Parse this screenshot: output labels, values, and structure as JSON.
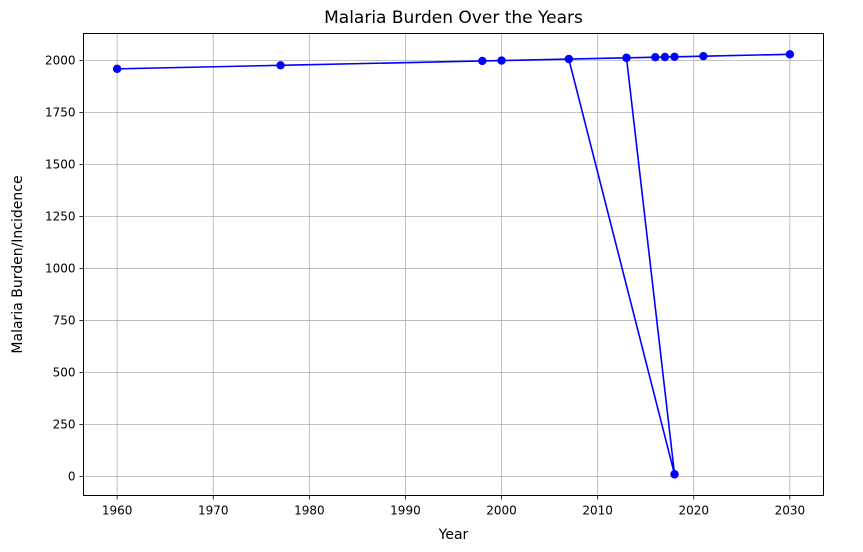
{
  "chart_data": {
    "type": "line",
    "title": "Malaria Burden Over the Years",
    "xlabel": "Year",
    "ylabel": "Malaria Burden/Incidence",
    "xlim": [
      1956.5,
      2033.5
    ],
    "ylim": [
      -92,
      2130
    ],
    "x_ticks": [
      1960,
      1970,
      1980,
      1990,
      2000,
      2010,
      2020,
      2030
    ],
    "y_ticks": [
      0,
      250,
      500,
      750,
      1000,
      1250,
      1500,
      1750,
      2000
    ],
    "grid": true,
    "legend": "none",
    "series": [
      {
        "color": "#0000ff",
        "marker": "circle",
        "points": [
          {
            "x": 1960,
            "y": 1960
          },
          {
            "x": 1977,
            "y": 1977
          },
          {
            "x": 1998,
            "y": 1998
          },
          {
            "x": 2000,
            "y": 2000
          },
          {
            "x": 2007,
            "y": 2007
          },
          {
            "x": 2018,
            "y": 10
          },
          {
            "x": 2007,
            "y": 2007
          },
          {
            "x": 2013,
            "y": 2013
          },
          {
            "x": 2018,
            "y": 10
          },
          {
            "x": 2013,
            "y": 2013
          },
          {
            "x": 2016,
            "y": 2016
          },
          {
            "x": 2017,
            "y": 2017
          },
          {
            "x": 2018,
            "y": 2018
          },
          {
            "x": 2021,
            "y": 2021
          },
          {
            "x": 2030,
            "y": 2030
          }
        ]
      }
    ]
  }
}
